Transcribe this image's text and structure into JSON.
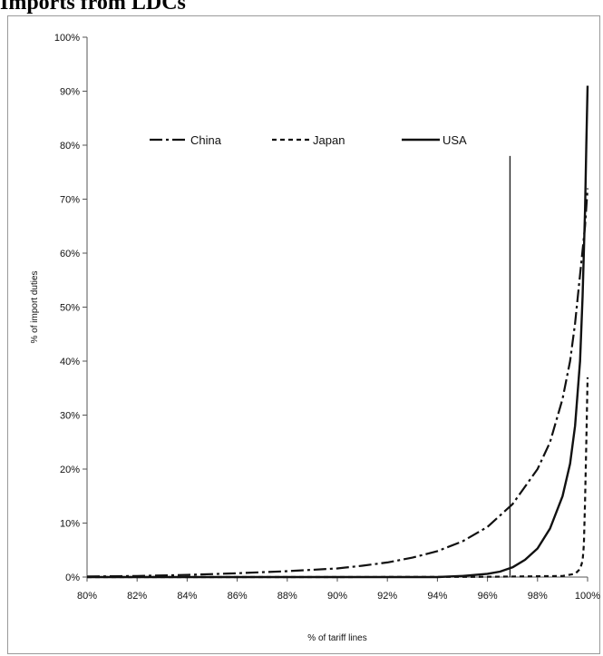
{
  "header": {
    "title": "Imports from LDCs"
  },
  "chart_data": {
    "type": "line",
    "xlabel": "% of tariff lines",
    "ylabel": "% of import duties",
    "xlim": [
      80,
      100
    ],
    "ylim": [
      0,
      100
    ],
    "x_ticks": [
      "80%",
      "82%",
      "84%",
      "86%",
      "88%",
      "90%",
      "92%",
      "94%",
      "96%",
      "98%",
      "100%"
    ],
    "y_ticks": [
      "0%",
      "10%",
      "20%",
      "30%",
      "40%",
      "50%",
      "60%",
      "70%",
      "80%",
      "90%",
      "100%"
    ],
    "legend_position": "top-center",
    "grid": false,
    "reference_line": {
      "x": 96.9,
      "y_top": 78
    },
    "series": [
      {
        "name": "China",
        "style": "dash-dot",
        "x": [
          80,
          82,
          84,
          86,
          88,
          90,
          91,
          92,
          93,
          94,
          95,
          96,
          97,
          98,
          98.5,
          99,
          99.3,
          99.5,
          99.7,
          99.9,
          100
        ],
        "y": [
          0.1,
          0.2,
          0.4,
          0.7,
          1.1,
          1.6,
          2.1,
          2.7,
          3.6,
          4.8,
          6.6,
          9.3,
          13.5,
          20,
          25,
          33,
          40,
          47,
          56,
          65,
          72
        ]
      },
      {
        "name": "Japan",
        "style": "dashed",
        "x": [
          80,
          90,
          96,
          99,
          99.5,
          99.7,
          99.8,
          99.85,
          99.9,
          99.95,
          100
        ],
        "y": [
          0,
          0,
          0.05,
          0.2,
          0.6,
          1.5,
          3,
          6,
          14,
          25,
          37
        ]
      },
      {
        "name": "USA",
        "style": "solid",
        "x": [
          80,
          94,
          95,
          96,
          96.5,
          97,
          97.5,
          98,
          98.5,
          99,
          99.3,
          99.5,
          99.7,
          99.8,
          99.9,
          99.95,
          100
        ],
        "y": [
          0,
          0,
          0.2,
          0.6,
          1,
          1.8,
          3.2,
          5.3,
          9,
          15,
          21,
          28,
          40,
          52,
          68,
          80,
          91
        ]
      }
    ]
  }
}
